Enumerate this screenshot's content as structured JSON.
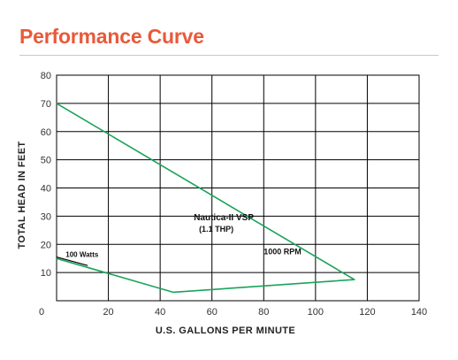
{
  "page": {
    "title": "Performance Curve",
    "title_color": "#e8593a"
  },
  "chart_data": {
    "type": "line",
    "xlabel": "U.S. GALLONS PER MINUTE",
    "ylabel": "TOTAL HEAD IN FEET",
    "xlim": [
      0,
      140
    ],
    "ylim": [
      0,
      80
    ],
    "x_ticks": [
      0,
      20,
      40,
      60,
      80,
      100,
      120,
      140
    ],
    "y_ticks": [
      10,
      20,
      30,
      40,
      50,
      60,
      70,
      80
    ],
    "grid": true,
    "colors": {
      "curve": "#1aa35a",
      "grid": "#000000",
      "pointer": "#000000"
    },
    "series": [
      {
        "points": [
          [
            0,
            70
          ],
          [
            115,
            7.5
          ],
          [
            45,
            3
          ],
          [
            0,
            15
          ]
        ]
      }
    ],
    "annotations": [
      {
        "text": "Nautica-II VSP",
        "x": 53,
        "y": 28.5,
        "size": 10,
        "weight": "bold"
      },
      {
        "text": "(1.1 THP)",
        "x": 55,
        "y": 24.5,
        "size": 9,
        "weight": "bold"
      },
      {
        "text": "1000 RPM",
        "x": 80,
        "y": 16.5,
        "size": 9,
        "weight": "bold"
      },
      {
        "text": "100 Watts",
        "x": 3.5,
        "y": 15.5,
        "size": 8,
        "weight": "bold"
      }
    ],
    "pointer": {
      "from": [
        0,
        15.5
      ],
      "to": [
        12,
        12.5
      ]
    }
  }
}
